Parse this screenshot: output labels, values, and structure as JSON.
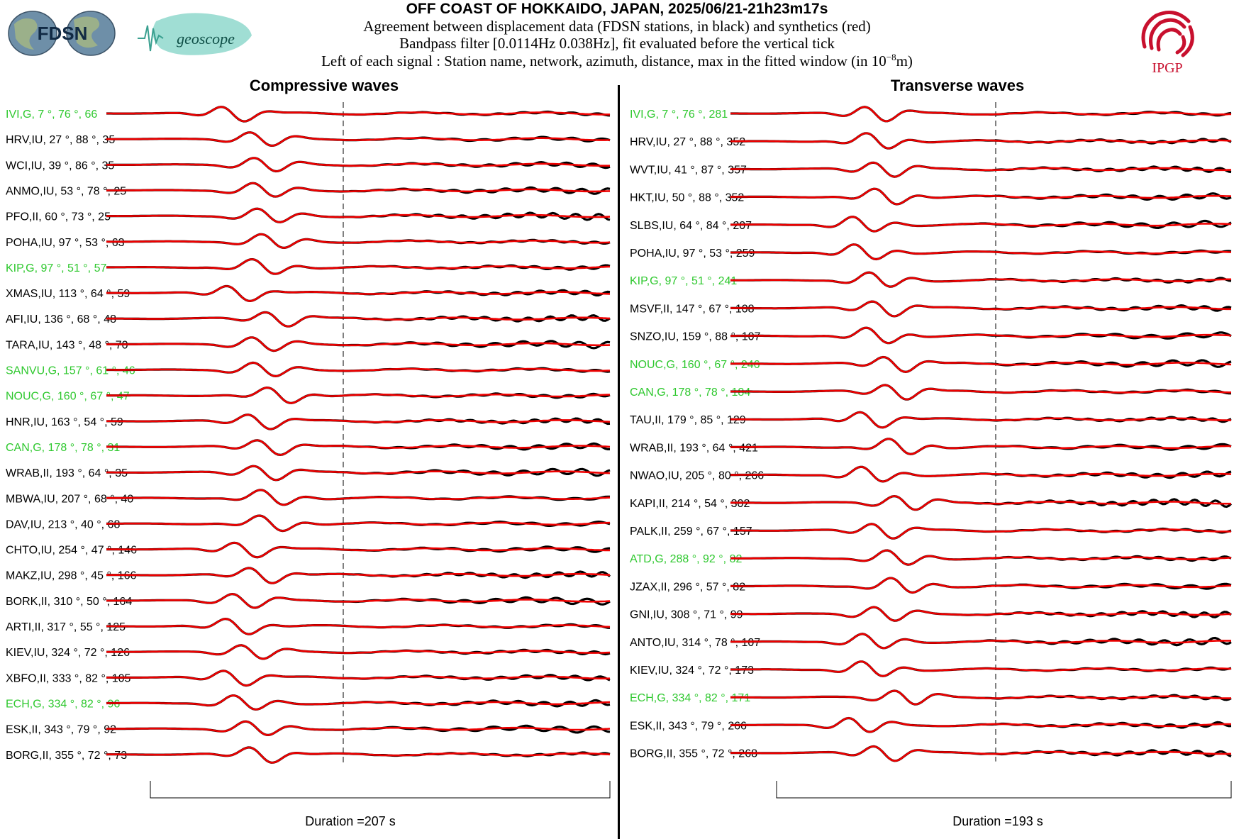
{
  "header": {
    "title": "OFF COAST OF HOKKAIDO, JAPAN, 2025/06/21-21h23m17s",
    "subtitle_1": "Agreement between displacement data (FDSN stations, in black) and synthetics (red)",
    "subtitle_2": "Bandpass filter [0.0114Hz 0.038Hz], fit evaluated before the vertical tick",
    "subtitle_3_prefix": "Left of each signal : Station name, network, azimuth, distance, max in the fitted window (in 10",
    "subtitle_3_exp": "−8",
    "subtitle_3_suffix": "m)",
    "logos": {
      "fdsn": "FDSN",
      "geoscope": "geoscope",
      "ipgp": "IPGP"
    }
  },
  "colors": {
    "data": "#000000",
    "synthetic": "#ee0000",
    "geoscope_station": "#2ec82e",
    "other_station": "#000000"
  },
  "chart_data": [
    {
      "type": "line",
      "title": "Compressive waves",
      "duration_label": "Duration =207 s",
      "series_colors": {
        "data": "black",
        "synthetics": "red"
      },
      "stations": [
        {
          "name": "IVI",
          "network": "G",
          "azimuth": 7,
          "distance": 76,
          "max": 66
        },
        {
          "name": "HRV",
          "network": "IU",
          "azimuth": 27,
          "distance": 88,
          "max": 35
        },
        {
          "name": "WCI",
          "network": "IU",
          "azimuth": 39,
          "distance": 86,
          "max": 35
        },
        {
          "name": "ANMO",
          "network": "IU",
          "azimuth": 53,
          "distance": 78,
          "max": 25
        },
        {
          "name": "PFO",
          "network": "II",
          "azimuth": 60,
          "distance": 73,
          "max": 25
        },
        {
          "name": "POHA",
          "network": "IU",
          "azimuth": 97,
          "distance": 53,
          "max": 63
        },
        {
          "name": "KIP",
          "network": "G",
          "azimuth": 97,
          "distance": 51,
          "max": 57
        },
        {
          "name": "XMAS",
          "network": "IU",
          "azimuth": 113,
          "distance": 64,
          "max": 59
        },
        {
          "name": "AFI",
          "network": "IU",
          "azimuth": 136,
          "distance": 68,
          "max": 48
        },
        {
          "name": "TARA",
          "network": "IU",
          "azimuth": 143,
          "distance": 48,
          "max": 70
        },
        {
          "name": "SANVU",
          "network": "G",
          "azimuth": 157,
          "distance": 61,
          "max": 46
        },
        {
          "name": "NOUC",
          "network": "G",
          "azimuth": 160,
          "distance": 67,
          "max": 47
        },
        {
          "name": "HNR",
          "network": "IU",
          "azimuth": 163,
          "distance": 54,
          "max": 59
        },
        {
          "name": "CAN",
          "network": "G",
          "azimuth": 178,
          "distance": 78,
          "max": 31
        },
        {
          "name": "WRAB",
          "network": "II",
          "azimuth": 193,
          "distance": 64,
          "max": 35
        },
        {
          "name": "MBWA",
          "network": "IU",
          "azimuth": 207,
          "distance": 68,
          "max": 40
        },
        {
          "name": "DAV",
          "network": "IU",
          "azimuth": 213,
          "distance": 40,
          "max": 68
        },
        {
          "name": "CHTO",
          "network": "IU",
          "azimuth": 254,
          "distance": 47,
          "max": 146
        },
        {
          "name": "MAKZ",
          "network": "IU",
          "azimuth": 298,
          "distance": 45,
          "max": 166
        },
        {
          "name": "BORK",
          "network": "II",
          "azimuth": 310,
          "distance": 50,
          "max": 164
        },
        {
          "name": "ARTI",
          "network": "II",
          "azimuth": 317,
          "distance": 55,
          "max": 125
        },
        {
          "name": "KIEV",
          "network": "IU",
          "azimuth": 324,
          "distance": 72,
          "max": 126
        },
        {
          "name": "XBFO",
          "network": "II",
          "azimuth": 333,
          "distance": 82,
          "max": 105
        },
        {
          "name": "ECH",
          "network": "G",
          "azimuth": 334,
          "distance": 82,
          "max": 96
        },
        {
          "name": "ESK",
          "network": "II",
          "azimuth": 343,
          "distance": 79,
          "max": 92
        },
        {
          "name": "BORG",
          "network": "II",
          "azimuth": 355,
          "distance": 72,
          "max": 73
        }
      ]
    },
    {
      "type": "line",
      "title": "Transverse waves",
      "duration_label": "Duration =193 s",
      "series_colors": {
        "data": "black",
        "synthetics": "red"
      },
      "stations": [
        {
          "name": "IVI",
          "network": "G",
          "azimuth": 7,
          "distance": 76,
          "max": 281
        },
        {
          "name": "HRV",
          "network": "IU",
          "azimuth": 27,
          "distance": 88,
          "max": 352
        },
        {
          "name": "WVT",
          "network": "IU",
          "azimuth": 41,
          "distance": 87,
          "max": 357
        },
        {
          "name": "HKT",
          "network": "IU",
          "azimuth": 50,
          "distance": 88,
          "max": 352
        },
        {
          "name": "SLBS",
          "network": "IU",
          "azimuth": 64,
          "distance": 84,
          "max": 207
        },
        {
          "name": "POHA",
          "network": "IU",
          "azimuth": 97,
          "distance": 53,
          "max": 259
        },
        {
          "name": "KIP",
          "network": "G",
          "azimuth": 97,
          "distance": 51,
          "max": 241
        },
        {
          "name": "MSVF",
          "network": "II",
          "azimuth": 147,
          "distance": 67,
          "max": 108
        },
        {
          "name": "SNZO",
          "network": "IU",
          "azimuth": 159,
          "distance": 88,
          "max": 107
        },
        {
          "name": "NOUC",
          "network": "G",
          "azimuth": 160,
          "distance": 67,
          "max": 246
        },
        {
          "name": "CAN",
          "network": "G",
          "azimuth": 178,
          "distance": 78,
          "max": 184
        },
        {
          "name": "TAU",
          "network": "II",
          "azimuth": 179,
          "distance": 85,
          "max": 129
        },
        {
          "name": "WRAB",
          "network": "II",
          "azimuth": 193,
          "distance": 64,
          "max": 421
        },
        {
          "name": "NWAO",
          "network": "IU",
          "azimuth": 205,
          "distance": 80,
          "max": 266
        },
        {
          "name": "KAPI",
          "network": "II",
          "azimuth": 214,
          "distance": 54,
          "max": 302
        },
        {
          "name": "PALK",
          "network": "II",
          "azimuth": 259,
          "distance": 67,
          "max": 157
        },
        {
          "name": "ATD",
          "network": "G",
          "azimuth": 288,
          "distance": 92,
          "max": 82
        },
        {
          "name": "JZAX",
          "network": "II",
          "azimuth": 296,
          "distance": 57,
          "max": 82
        },
        {
          "name": "GNI",
          "network": "IU",
          "azimuth": 308,
          "distance": 71,
          "max": 99
        },
        {
          "name": "ANTO",
          "network": "IU",
          "azimuth": 314,
          "distance": 78,
          "max": 107
        },
        {
          "name": "KIEV",
          "network": "IU",
          "azimuth": 324,
          "distance": 72,
          "max": 173
        },
        {
          "name": "ECH",
          "network": "G",
          "azimuth": 334,
          "distance": 82,
          "max": 171
        },
        {
          "name": "ESK",
          "network": "II",
          "azimuth": 343,
          "distance": 79,
          "max": 266
        },
        {
          "name": "BORG",
          "network": "II",
          "azimuth": 355,
          "distance": 72,
          "max": 268
        }
      ]
    }
  ]
}
